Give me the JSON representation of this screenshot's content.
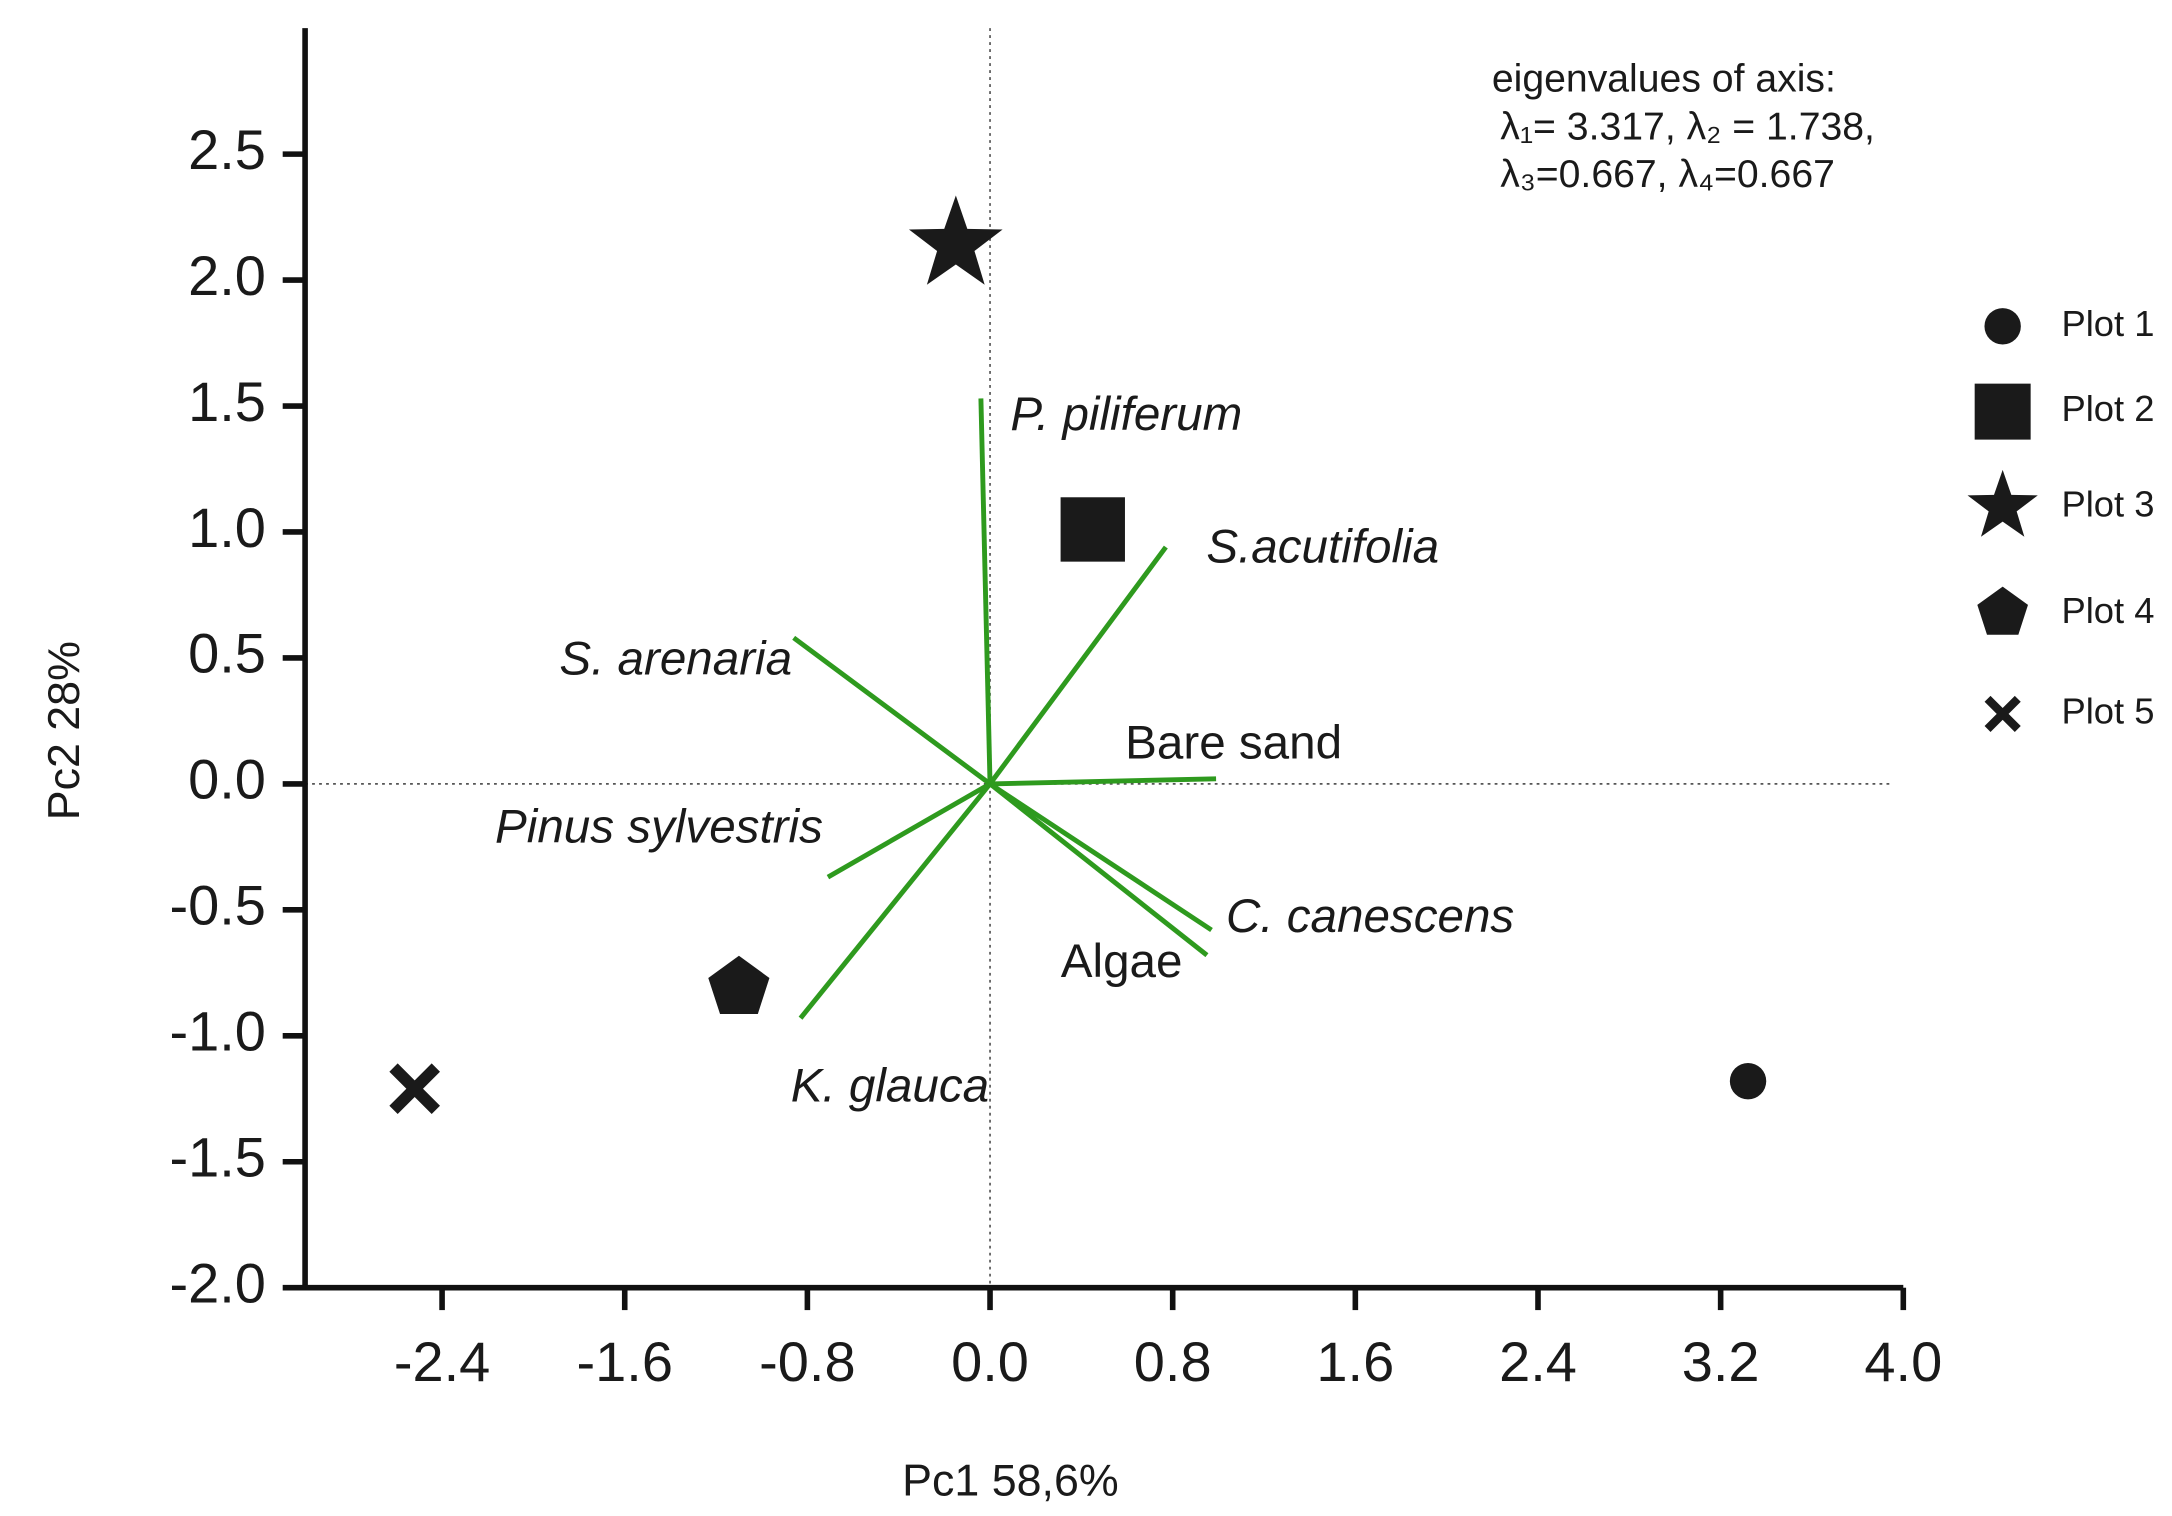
{
  "chart_data": {
    "type": "scatter",
    "x_label": "Pc1 58,6%",
    "y_label": "Pc2 28%",
    "xlim": [
      -3.0,
      4.0
    ],
    "ylim": [
      -2.0,
      3.0
    ],
    "xticks": [
      -2.4,
      -1.6,
      -0.8,
      {
        "value": 0,
        "label": "0.0"
      },
      0.8,
      1.6,
      2.4,
      3.2,
      {
        "value": 4,
        "label": "4.0"
      }
    ],
    "yticks": [
      {
        "value": -2,
        "label": "-2.0"
      },
      -1.5,
      {
        "value": -1,
        "label": "-1.0"
      },
      -0.5,
      {
        "value": 0,
        "label": "0.0"
      },
      0.5,
      {
        "value": 1,
        "label": "1.0"
      },
      1.5,
      {
        "value": 2,
        "label": "2.0"
      },
      2.5
    ],
    "legend_position": "right",
    "annotation": [
      "eigenvalues of axis:",
      "λ₁= 3.317, λ₂ = 1.738,",
      "λ₃=0.667, λ₄=0.667"
    ],
    "series": [
      {
        "name": "Plot 1",
        "marker": "circle",
        "color": "#1a1a1a",
        "x": [
          3.32
        ],
        "values": [
          -1.18
        ]
      },
      {
        "name": "Plot 2",
        "marker": "square",
        "color": "#1a1a1a",
        "x": [
          0.45
        ],
        "values": [
          1.01
        ]
      },
      {
        "name": "Plot 3",
        "marker": "star",
        "color": "#1a1a1a",
        "x": [
          -0.15
        ],
        "values": [
          2.14
        ]
      },
      {
        "name": "Plot 4",
        "marker": "pentagon",
        "color": "#1a1a1a",
        "x": [
          -1.1
        ],
        "values": [
          -0.81
        ]
      },
      {
        "name": "Plot 5",
        "marker": "x",
        "color": "#1a1a1a",
        "x": [
          -2.52
        ],
        "values": [
          -1.21
        ]
      }
    ],
    "vector_color": "#2e9a1e",
    "vectors": [
      {
        "name": "P. piliferum",
        "italic": true,
        "x": -0.04,
        "y": 1.53
      },
      {
        "name": "S.acutifolia",
        "italic": true,
        "x": 0.77,
        "y": 0.94
      },
      {
        "name": "S. arenaria",
        "italic": true,
        "x": -0.86,
        "y": 0.58
      },
      {
        "name": "Bare sand",
        "italic": false,
        "x": 0.99,
        "y": 0.02
      },
      {
        "name": "Pinus sylvestris",
        "italic": true,
        "x": -0.71,
        "y": -0.37
      },
      {
        "name": "C. canescens",
        "italic": true,
        "x": 0.97,
        "y": -0.58
      },
      {
        "name": "Algae",
        "italic": false,
        "x": 0.95,
        "y": -0.68
      },
      {
        "name": "K. glauca",
        "italic": true,
        "x": -0.83,
        "y": -0.93
      }
    ]
  }
}
